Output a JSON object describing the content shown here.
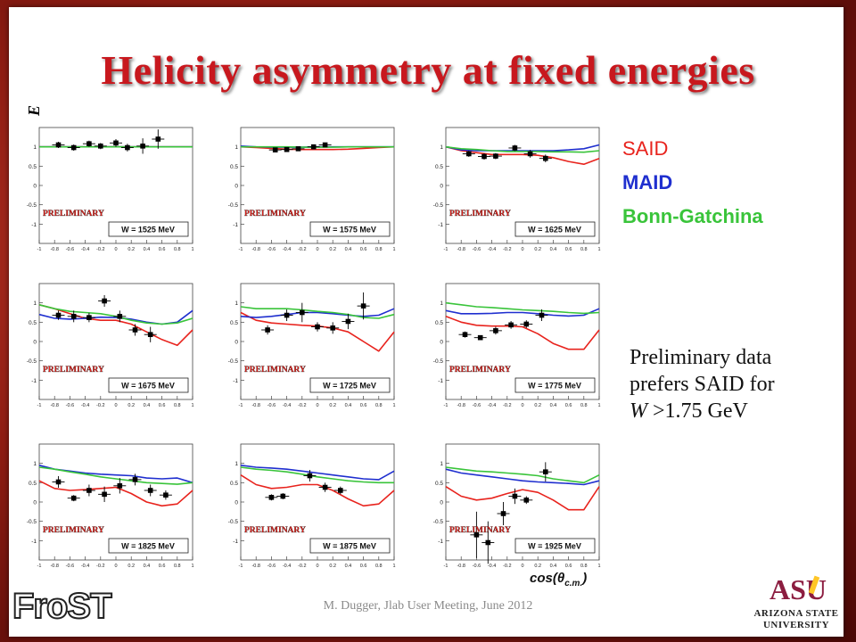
{
  "slide": {
    "title": "Helicity asymmetry at fixed energies",
    "ylabel": "E",
    "xlabel": "cos(θ c.m. )",
    "footer": "M. Dugger, Jlab User Meeting, June 2012",
    "frost_logo": "FroST",
    "asu_logo": "ASU",
    "asu_name_line1": "ARIZONA STATE",
    "asu_name_line2": "UNIVERSITY",
    "note_line1": "Preliminary data",
    "note_line2": "prefers SAID for",
    "note_w": "W",
    "note_line3_rest": " >1.75 GeV",
    "colors": {
      "title": "#c8181e",
      "said": "#e8231d",
      "maid": "#1f2fcf",
      "bonn": "#39c43a",
      "border": "#8f1d13"
    }
  },
  "legend": [
    {
      "label": "SAID",
      "color": "#e8231d"
    },
    {
      "label": "MAID",
      "color": "#1f2fcf"
    },
    {
      "label": "Bonn-Gatchina",
      "color": "#39c43a"
    }
  ],
  "chart_data": [
    {
      "type": "scatter",
      "energy_label": "W = 1525 MeV",
      "watermark": "PRELIMINARY",
      "xlim": [
        -1,
        1
      ],
      "ylim": [
        -1.5,
        1.5
      ],
      "xticks": [
        "-1",
        "-0.8",
        "-0.6",
        "-0.4",
        "-0.2",
        "0",
        "0.2",
        "0.4",
        "0.6",
        "0.8",
        "1"
      ],
      "yticks": [
        "1",
        "0.5",
        "0",
        "-0.5",
        "-1"
      ],
      "points": [
        [
          -0.75,
          1.05,
          0.08
        ],
        [
          -0.55,
          0.98,
          0.08
        ],
        [
          -0.35,
          1.08,
          0.08
        ],
        [
          -0.2,
          1.02,
          0.08
        ],
        [
          0.0,
          1.1,
          0.1
        ],
        [
          0.15,
          0.98,
          0.1
        ],
        [
          0.35,
          1.02,
          0.2
        ],
        [
          0.55,
          1.2,
          0.25
        ]
      ],
      "series": [
        {
          "name": "SAID",
          "y": [
            1.0,
            1.0,
            1.0,
            1.0,
            1.0,
            1.0,
            1.0,
            1.0,
            1.0,
            1.0,
            1.0
          ]
        },
        {
          "name": "MAID",
          "y": [
            1.0,
            1.0,
            1.0,
            1.0,
            1.0,
            1.0,
            1.0,
            1.0,
            1.0,
            1.0,
            1.0
          ]
        },
        {
          "name": "Bonn-Gatchina",
          "y": [
            1.0,
            1.0,
            1.0,
            1.0,
            1.0,
            1.0,
            1.0,
            1.0,
            1.0,
            1.0,
            1.0
          ]
        }
      ]
    },
    {
      "type": "scatter",
      "energy_label": "W = 1575 MeV",
      "watermark": "PRELIMINARY",
      "xlim": [
        -1,
        1
      ],
      "ylim": [
        -1.5,
        1.5
      ],
      "xticks": [
        "-1",
        "-0.8",
        "-0.6",
        "-0.4",
        "-0.2",
        "0",
        "0.2",
        "0.4",
        "0.6",
        "0.8",
        "1"
      ],
      "yticks": [
        "1",
        "0.5",
        "0",
        "-0.5",
        "-1"
      ],
      "points": [
        [
          -0.55,
          0.92,
          0.05
        ],
        [
          -0.4,
          0.93,
          0.05
        ],
        [
          -0.25,
          0.95,
          0.05
        ],
        [
          -0.05,
          1.0,
          0.06
        ],
        [
          0.1,
          1.05,
          0.06
        ]
      ],
      "series": [
        {
          "name": "SAID",
          "y": [
            1.0,
            0.98,
            0.96,
            0.94,
            0.93,
            0.93,
            0.93,
            0.94,
            0.96,
            0.98,
            1.0
          ]
        },
        {
          "name": "MAID",
          "y": [
            1.02,
            1.0,
            0.99,
            0.99,
            0.99,
            1.0,
            1.0,
            1.0,
            1.0,
            1.0,
            1.0
          ]
        },
        {
          "name": "Bonn-Gatchina",
          "y": [
            1.0,
            1.0,
            1.0,
            1.0,
            0.99,
            0.99,
            0.99,
            1.0,
            1.0,
            1.0,
            1.0
          ]
        }
      ]
    },
    {
      "type": "scatter",
      "energy_label": "W = 1625 MeV",
      "watermark": "PRELIMINARY",
      "xlim": [
        -1,
        1
      ],
      "ylim": [
        -1.5,
        1.5
      ],
      "xticks": [
        "-1",
        "-0.8",
        "-0.6",
        "-0.4",
        "-0.2",
        "0",
        "0.2",
        "0.4",
        "0.6",
        "0.8",
        "1"
      ],
      "yticks": [
        "1",
        "0.5",
        "0",
        "-0.5",
        "-1"
      ],
      "points": [
        [
          -0.7,
          0.82,
          0.08
        ],
        [
          -0.5,
          0.75,
          0.08
        ],
        [
          -0.35,
          0.76,
          0.08
        ],
        [
          -0.1,
          0.97,
          0.08
        ],
        [
          0.1,
          0.82,
          0.1
        ],
        [
          0.3,
          0.7,
          0.1
        ]
      ],
      "series": [
        {
          "name": "SAID",
          "y": [
            1.0,
            0.9,
            0.85,
            0.8,
            0.8,
            0.8,
            0.78,
            0.72,
            0.62,
            0.55,
            0.7
          ]
        },
        {
          "name": "MAID",
          "y": [
            1.0,
            0.92,
            0.9,
            0.9,
            0.9,
            0.9,
            0.9,
            0.9,
            0.92,
            0.95,
            1.05
          ]
        },
        {
          "name": "Bonn-Gatchina",
          "y": [
            1.0,
            0.95,
            0.93,
            0.9,
            0.88,
            0.88,
            0.88,
            0.87,
            0.87,
            0.86,
            0.9
          ]
        }
      ]
    },
    {
      "type": "scatter",
      "energy_label": "W = 1675 MeV",
      "watermark": "PRELIMINARY",
      "xlim": [
        -1,
        1
      ],
      "ylim": [
        -1.5,
        1.5
      ],
      "xticks": [
        "-1",
        "-0.8",
        "-0.6",
        "-0.4",
        "-0.2",
        "0",
        "0.2",
        "0.4",
        "0.6",
        "0.8",
        "1"
      ],
      "yticks": [
        "1",
        "0.5",
        "0",
        "-0.5",
        "-1"
      ],
      "points": [
        [
          -0.75,
          0.68,
          0.12
        ],
        [
          -0.55,
          0.65,
          0.15
        ],
        [
          -0.35,
          0.62,
          0.12
        ],
        [
          -0.15,
          1.05,
          0.15
        ],
        [
          0.05,
          0.65,
          0.15
        ],
        [
          0.25,
          0.3,
          0.15
        ],
        [
          0.45,
          0.18,
          0.2
        ]
      ],
      "series": [
        {
          "name": "SAID",
          "y": [
            0.95,
            0.85,
            0.72,
            0.6,
            0.55,
            0.55,
            0.45,
            0.25,
            0.05,
            -0.1,
            0.3
          ]
        },
        {
          "name": "MAID",
          "y": [
            0.7,
            0.6,
            0.58,
            0.6,
            0.63,
            0.62,
            0.58,
            0.5,
            0.45,
            0.5,
            0.8
          ]
        },
        {
          "name": "Bonn-Gatchina",
          "y": [
            0.95,
            0.85,
            0.78,
            0.75,
            0.72,
            0.65,
            0.55,
            0.48,
            0.45,
            0.48,
            0.6
          ]
        }
      ]
    },
    {
      "type": "scatter",
      "energy_label": "W = 1725 MeV",
      "watermark": "PRELIMINARY",
      "xlim": [
        -1,
        1
      ],
      "ylim": [
        -1.5,
        1.5
      ],
      "xticks": [
        "-1",
        "-0.8",
        "-0.6",
        "-0.4",
        "-0.2",
        "0",
        "0.2",
        "0.4",
        "0.6",
        "0.8",
        "1"
      ],
      "yticks": [
        "1",
        "0.5",
        "0",
        "-0.5",
        "-1"
      ],
      "points": [
        [
          -0.65,
          0.3,
          0.12
        ],
        [
          -0.4,
          0.68,
          0.15
        ],
        [
          -0.2,
          0.75,
          0.25
        ],
        [
          0.0,
          0.38,
          0.12
        ],
        [
          0.2,
          0.35,
          0.15
        ],
        [
          0.4,
          0.52,
          0.2
        ],
        [
          0.6,
          0.92,
          0.35
        ]
      ],
      "series": [
        {
          "name": "SAID",
          "y": [
            0.75,
            0.55,
            0.48,
            0.45,
            0.42,
            0.4,
            0.35,
            0.25,
            0.0,
            -0.25,
            0.25
          ]
        },
        {
          "name": "MAID",
          "y": [
            0.65,
            0.62,
            0.65,
            0.7,
            0.75,
            0.75,
            0.72,
            0.68,
            0.65,
            0.68,
            0.85
          ]
        },
        {
          "name": "Bonn-Gatchina",
          "y": [
            0.9,
            0.85,
            0.85,
            0.85,
            0.82,
            0.78,
            0.75,
            0.7,
            0.62,
            0.6,
            0.7
          ]
        }
      ]
    },
    {
      "type": "scatter",
      "energy_label": "W = 1775 MeV",
      "watermark": "PRELIMINARY",
      "xlim": [
        -1,
        1
      ],
      "ylim": [
        -1.5,
        1.5
      ],
      "xticks": [
        "-1",
        "-0.8",
        "-0.6",
        "-0.4",
        "-0.2",
        "0",
        "0.2",
        "0.4",
        "0.6",
        "0.8",
        "1"
      ],
      "yticks": [
        "1",
        "0.5",
        "0",
        "-0.5",
        "-1"
      ],
      "points": [
        [
          -0.75,
          0.18,
          0.08
        ],
        [
          -0.55,
          0.1,
          0.06
        ],
        [
          -0.35,
          0.28,
          0.1
        ],
        [
          -0.15,
          0.43,
          0.1
        ],
        [
          0.05,
          0.45,
          0.1
        ],
        [
          0.25,
          0.68,
          0.15
        ]
      ],
      "series": [
        {
          "name": "SAID",
          "y": [
            0.65,
            0.5,
            0.42,
            0.4,
            0.4,
            0.38,
            0.2,
            -0.05,
            -0.2,
            -0.2,
            0.3
          ]
        },
        {
          "name": "MAID",
          "y": [
            0.8,
            0.72,
            0.72,
            0.73,
            0.75,
            0.75,
            0.72,
            0.68,
            0.66,
            0.68,
            0.85
          ]
        },
        {
          "name": "Bonn-Gatchina",
          "y": [
            1.0,
            0.95,
            0.9,
            0.88,
            0.85,
            0.82,
            0.8,
            0.78,
            0.75,
            0.73,
            0.75
          ]
        }
      ]
    },
    {
      "type": "scatter",
      "energy_label": "W = 1825 MeV",
      "watermark": "PRELIMINARY",
      "xlim": [
        -1,
        1
      ],
      "ylim": [
        -1.5,
        1.5
      ],
      "xticks": [
        "-1",
        "-0.8",
        "-0.6",
        "-0.4",
        "-0.2",
        "0",
        "0.2",
        "0.4",
        "0.6",
        "0.8",
        "1"
      ],
      "yticks": [
        "1",
        "0.5",
        "0",
        "-0.5",
        "-1"
      ],
      "points": [
        [
          -0.75,
          0.52,
          0.15
        ],
        [
          -0.55,
          0.1,
          0.08
        ],
        [
          -0.35,
          0.3,
          0.15
        ],
        [
          -0.15,
          0.2,
          0.2
        ],
        [
          0.05,
          0.42,
          0.2
        ],
        [
          0.25,
          0.58,
          0.15
        ],
        [
          0.45,
          0.3,
          0.15
        ],
        [
          0.65,
          0.18,
          0.12
        ]
      ],
      "series": [
        {
          "name": "SAID",
          "y": [
            0.55,
            0.35,
            0.3,
            0.32,
            0.35,
            0.38,
            0.22,
            0.0,
            -0.1,
            -0.05,
            0.3
          ]
        },
        {
          "name": "MAID",
          "y": [
            0.95,
            0.85,
            0.8,
            0.75,
            0.72,
            0.7,
            0.68,
            0.62,
            0.6,
            0.62,
            0.5
          ]
        },
        {
          "name": "Bonn-Gatchina",
          "y": [
            0.9,
            0.85,
            0.78,
            0.72,
            0.65,
            0.6,
            0.55,
            0.5,
            0.48,
            0.46,
            0.5
          ]
        }
      ]
    },
    {
      "type": "scatter",
      "energy_label": "W = 1875 MeV",
      "watermark": "PRELIMINARY",
      "xlim": [
        -1,
        1
      ],
      "ylim": [
        -1.5,
        1.5
      ],
      "xticks": [
        "-1",
        "-0.8",
        "-0.6",
        "-0.4",
        "-0.2",
        "0",
        "0.2",
        "0.4",
        "0.6",
        "0.8",
        "1"
      ],
      "yticks": [
        "1",
        "0.5",
        "0",
        "-0.5",
        "-1"
      ],
      "points": [
        [
          -0.6,
          0.12,
          0.08
        ],
        [
          -0.45,
          0.15,
          0.08
        ],
        [
          -0.1,
          0.68,
          0.15
        ],
        [
          0.1,
          0.38,
          0.12
        ],
        [
          0.3,
          0.3,
          0.1
        ]
      ],
      "series": [
        {
          "name": "SAID",
          "y": [
            0.7,
            0.45,
            0.35,
            0.38,
            0.45,
            0.45,
            0.3,
            0.08,
            -0.1,
            -0.05,
            0.3
          ]
        },
        {
          "name": "MAID",
          "y": [
            0.95,
            0.9,
            0.88,
            0.85,
            0.8,
            0.75,
            0.7,
            0.65,
            0.6,
            0.58,
            0.8
          ]
        },
        {
          "name": "Bonn-Gatchina",
          "y": [
            0.9,
            0.85,
            0.82,
            0.78,
            0.72,
            0.65,
            0.6,
            0.55,
            0.52,
            0.5,
            0.5
          ]
        }
      ]
    },
    {
      "type": "scatter",
      "energy_label": "W = 1925 MeV",
      "watermark": "PRELIMINARY",
      "xlim": [
        -1,
        1
      ],
      "ylim": [
        -1.5,
        1.5
      ],
      "xticks": [
        "-1",
        "-0.8",
        "-0.6",
        "-0.4",
        "-0.2",
        "0",
        "0.2",
        "0.4",
        "0.6",
        "0.8",
        "1"
      ],
      "yticks": [
        "1",
        "0.5",
        "0",
        "-0.5",
        "-1"
      ],
      "points": [
        [
          -0.6,
          -0.85,
          0.6
        ],
        [
          -0.45,
          -1.05,
          0.55
        ],
        [
          -0.25,
          -0.3,
          0.3
        ],
        [
          -0.1,
          0.15,
          0.2
        ],
        [
          0.05,
          0.05,
          0.1
        ],
        [
          0.3,
          0.78,
          0.25
        ]
      ],
      "series": [
        {
          "name": "SAID",
          "y": [
            0.4,
            0.15,
            0.05,
            0.1,
            0.22,
            0.32,
            0.25,
            0.05,
            -0.2,
            -0.2,
            0.4
          ]
        },
        {
          "name": "MAID",
          "y": [
            0.85,
            0.75,
            0.7,
            0.65,
            0.6,
            0.55,
            0.52,
            0.5,
            0.48,
            0.45,
            0.55
          ]
        },
        {
          "name": "Bonn-Gatchina",
          "y": [
            0.9,
            0.85,
            0.8,
            0.78,
            0.75,
            0.72,
            0.68,
            0.6,
            0.55,
            0.5,
            0.7
          ]
        }
      ]
    }
  ]
}
